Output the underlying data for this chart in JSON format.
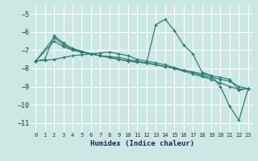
{
  "xlabel": "Humidex (Indice chaleur)",
  "background_color": "#cce8e4",
  "grid_color": "#ffffff",
  "line_color": "#2a7a70",
  "xlim": [
    -0.5,
    23.5
  ],
  "ylim": [
    -11.5,
    -4.5
  ],
  "yticks": [
    -11,
    -10,
    -9,
    -8,
    -7,
    -6,
    -5
  ],
  "xticks": [
    0,
    1,
    2,
    3,
    4,
    5,
    6,
    7,
    8,
    9,
    10,
    11,
    12,
    13,
    14,
    15,
    16,
    17,
    18,
    19,
    20,
    21,
    22,
    23
  ],
  "series": [
    {
      "x": [
        0,
        1,
        2,
        3,
        4,
        5,
        6,
        7,
        8,
        9,
        10,
        11,
        12,
        13,
        14,
        15,
        16,
        17,
        18,
        19,
        20,
        21,
        22,
        23
      ],
      "y": [
        -7.6,
        -7.55,
        -7.5,
        -7.4,
        -7.3,
        -7.25,
        -7.2,
        -7.15,
        -7.1,
        -7.2,
        -7.3,
        -7.5,
        -7.6,
        -7.7,
        -7.8,
        -7.95,
        -8.1,
        -8.2,
        -8.4,
        -8.5,
        -8.6,
        -8.7,
        -9.0,
        -9.1
      ]
    },
    {
      "x": [
        0,
        2,
        3,
        4,
        5,
        6,
        7,
        8,
        9,
        10,
        11,
        12,
        13,
        14,
        15,
        16,
        17,
        18,
        19,
        20,
        21,
        22,
        23
      ],
      "y": [
        -7.6,
        -6.5,
        -6.8,
        -7.0,
        -7.1,
        -7.2,
        -7.3,
        -7.35,
        -7.4,
        -7.5,
        -7.6,
        -7.7,
        -7.8,
        -7.9,
        -8.0,
        -8.1,
        -8.2,
        -8.3,
        -8.4,
        -8.5,
        -8.6,
        -9.2,
        -9.1
      ]
    },
    {
      "x": [
        0,
        2,
        3,
        4,
        5,
        6,
        7,
        8,
        9,
        10,
        11,
        12,
        13,
        14,
        15,
        16,
        17,
        18,
        19,
        20,
        21,
        22,
        23
      ],
      "y": [
        -7.6,
        -6.3,
        -6.7,
        -6.95,
        -7.1,
        -7.2,
        -7.3,
        -7.4,
        -7.5,
        -7.6,
        -7.65,
        -7.7,
        -7.8,
        -7.9,
        -8.0,
        -8.15,
        -8.3,
        -8.45,
        -8.6,
        -8.8,
        -9.0,
        -9.15,
        -9.1
      ]
    },
    {
      "x": [
        0,
        1,
        2,
        3,
        4,
        5,
        6,
        7,
        8,
        9,
        10,
        11,
        12,
        13,
        14,
        15,
        16,
        17,
        18,
        19,
        20,
        21,
        22,
        23
      ],
      "y": [
        -7.6,
        -7.5,
        -6.2,
        -6.6,
        -6.9,
        -7.05,
        -7.2,
        -7.3,
        -7.4,
        -7.5,
        -7.6,
        -7.65,
        -7.7,
        -5.6,
        -5.3,
        -5.9,
        -6.7,
        -7.2,
        -8.2,
        -8.4,
        -9.0,
        -10.1,
        -10.85,
        -9.1
      ]
    }
  ]
}
